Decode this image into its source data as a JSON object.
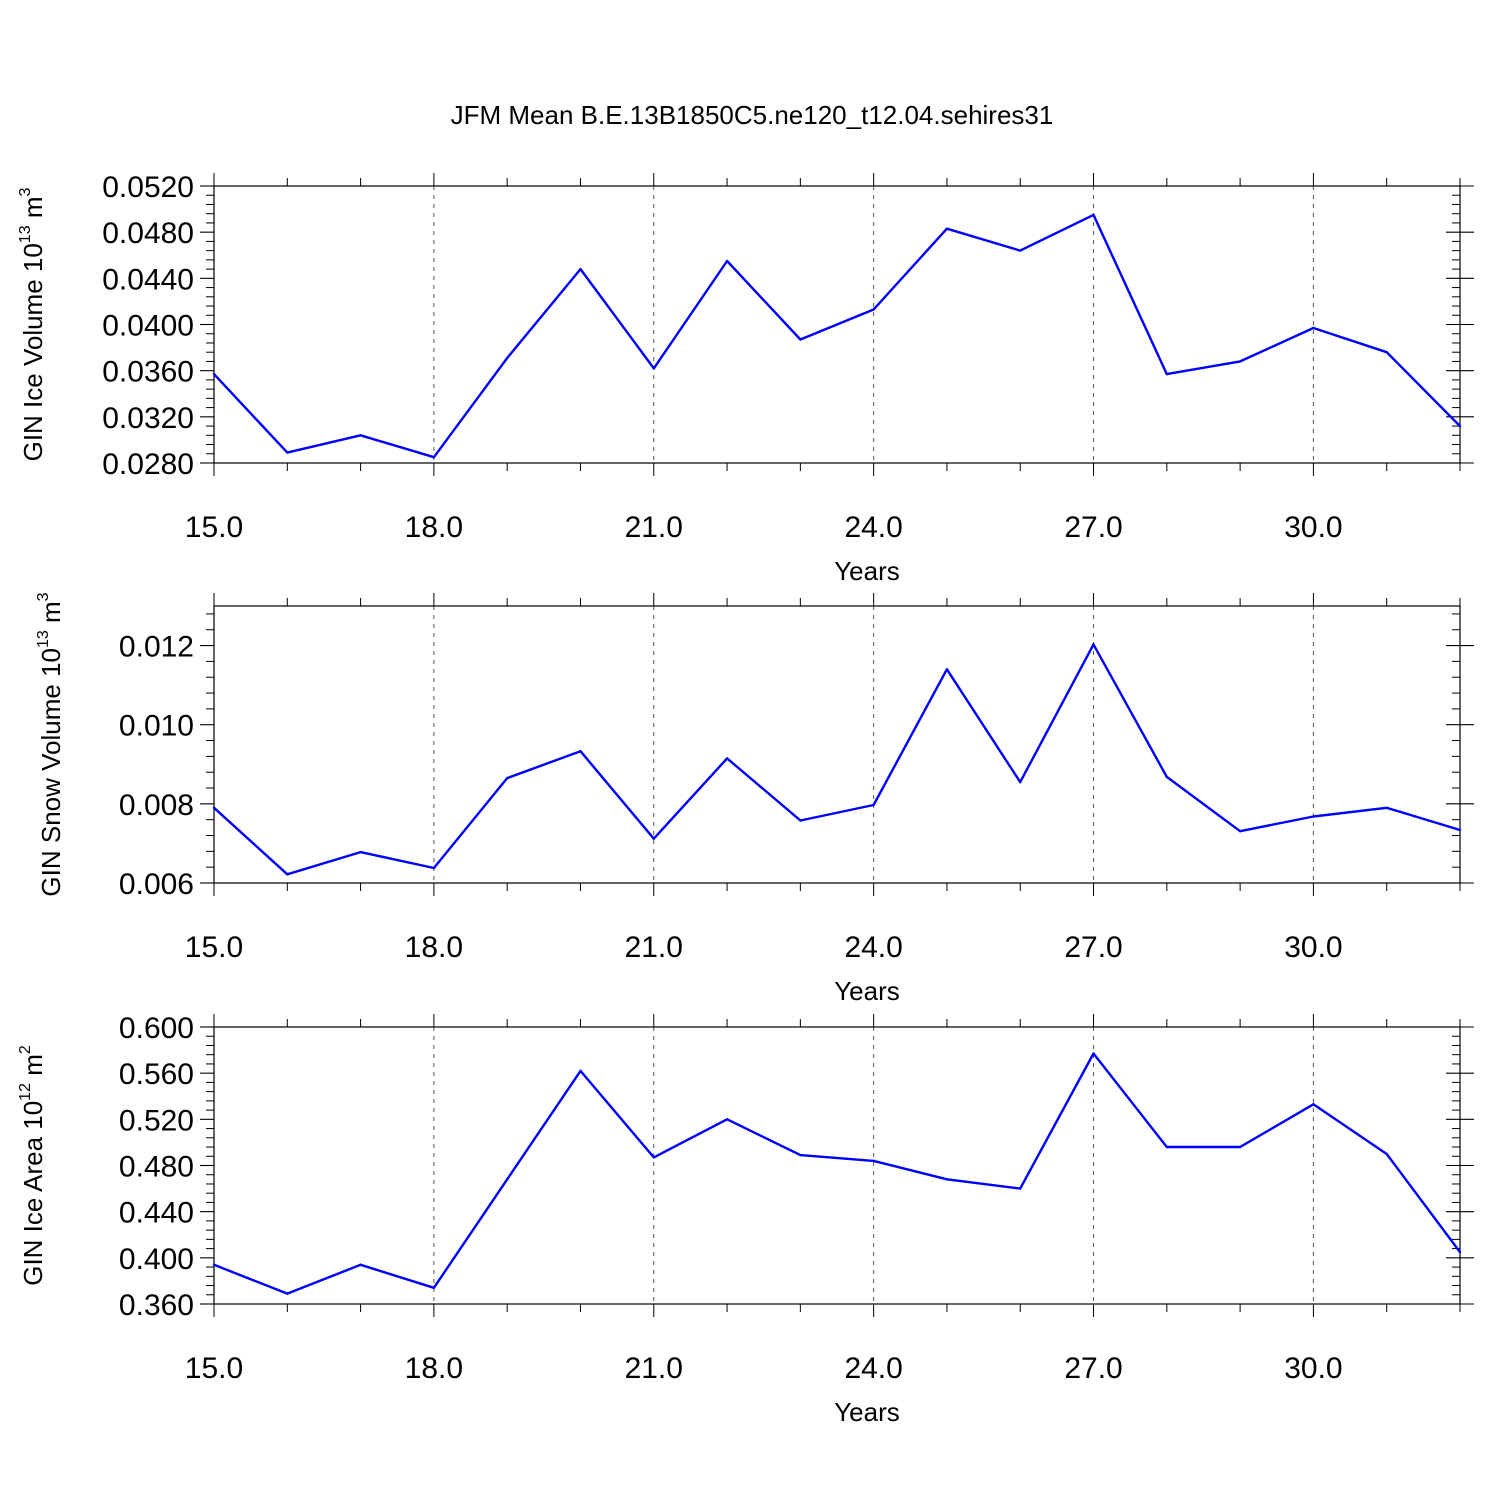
{
  "title": "JFM Mean B.E.13B1850C5.ne120_t12.04.sehires31",
  "colors": {
    "series": "#0000ff",
    "axes": "#000000",
    "grid": "#555555"
  },
  "chart_data": [
    {
      "type": "line",
      "ylabel": {
        "text": "GIN Ice Volume 10",
        "exp": "13",
        "unit": " m",
        "unit_exp": "3"
      },
      "xlabel": "Years",
      "xlim": [
        15,
        32
      ],
      "ylim": [
        0.028,
        0.052
      ],
      "x_ticks": [
        15,
        18,
        21,
        24,
        27,
        30
      ],
      "x_ticklabels": [
        "15.0",
        "18.0",
        "21.0",
        "24.0",
        "27.0",
        "30.0"
      ],
      "y_ticks": [
        0.028,
        0.032,
        0.036,
        0.04,
        0.044,
        0.048,
        0.052
      ],
      "y_ticklabels": [
        "0.0280",
        "0.0320",
        "0.0360",
        "0.0400",
        "0.0440",
        "0.0480",
        "0.0520"
      ],
      "y_minor_step": 0.0008,
      "vgrid": [
        18,
        21,
        24,
        27,
        30
      ],
      "x": [
        15,
        16,
        17,
        18,
        19,
        20,
        21,
        22,
        23,
        24,
        25,
        26,
        27,
        28,
        29,
        30,
        31,
        32
      ],
      "values": [
        0.0357,
        0.0289,
        0.0304,
        0.0285,
        0.0371,
        0.0448,
        0.0362,
        0.0455,
        0.0387,
        0.0413,
        0.0483,
        0.0464,
        0.0495,
        0.0357,
        0.0368,
        0.0397,
        0.0376,
        0.0312
      ]
    },
    {
      "type": "line",
      "ylabel": {
        "text": "GIN Snow Volume 10",
        "exp": "13",
        "unit": " m",
        "unit_exp": "3"
      },
      "xlabel": "Years",
      "xlim": [
        15,
        32
      ],
      "ylim": [
        0.006,
        0.013
      ],
      "x_ticks": [
        15,
        18,
        21,
        24,
        27,
        30
      ],
      "x_ticklabels": [
        "15.0",
        "18.0",
        "21.0",
        "24.0",
        "27.0",
        "30.0"
      ],
      "y_ticks": [
        0.006,
        0.008,
        0.01,
        0.012
      ],
      "y_ticklabels": [
        "0.006",
        "0.008",
        "0.010",
        "0.012"
      ],
      "y_minor_step": 0.0004,
      "vgrid": [
        18,
        21,
        24,
        27,
        30
      ],
      "x": [
        15,
        16,
        17,
        18,
        19,
        20,
        21,
        22,
        23,
        24,
        25,
        26,
        27,
        28,
        29,
        30,
        31,
        32
      ],
      "values": [
        0.0079,
        0.00622,
        0.00678,
        0.00638,
        0.00865,
        0.00933,
        0.00712,
        0.00915,
        0.00758,
        0.00797,
        0.0114,
        0.00855,
        0.01203,
        0.00868,
        0.00731,
        0.00768,
        0.0079,
        0.00734
      ]
    },
    {
      "type": "line",
      "ylabel": {
        "text": "GIN Ice Area 10",
        "exp": "12",
        "unit": " m",
        "unit_exp": "2"
      },
      "xlabel": "Years",
      "xlim": [
        15,
        32
      ],
      "ylim": [
        0.36,
        0.6
      ],
      "x_ticks": [
        15,
        18,
        21,
        24,
        27,
        30
      ],
      "x_ticklabels": [
        "15.0",
        "18.0",
        "21.0",
        "24.0",
        "27.0",
        "30.0"
      ],
      "y_ticks": [
        0.36,
        0.4,
        0.44,
        0.48,
        0.52,
        0.56,
        0.6
      ],
      "y_ticklabels": [
        "0.360",
        "0.400",
        "0.440",
        "0.480",
        "0.520",
        "0.560",
        "0.600"
      ],
      "y_minor_step": 0.008,
      "vgrid": [
        18,
        21,
        24,
        27,
        30
      ],
      "x": [
        15,
        16,
        17,
        18,
        19,
        20,
        21,
        22,
        23,
        24,
        25,
        26,
        27,
        28,
        29,
        30,
        31,
        32
      ],
      "values": [
        0.394,
        0.369,
        0.394,
        0.374,
        0.468,
        0.562,
        0.487,
        0.52,
        0.489,
        0.484,
        0.468,
        0.46,
        0.577,
        0.496,
        0.496,
        0.533,
        0.49,
        0.405
      ]
    }
  ]
}
